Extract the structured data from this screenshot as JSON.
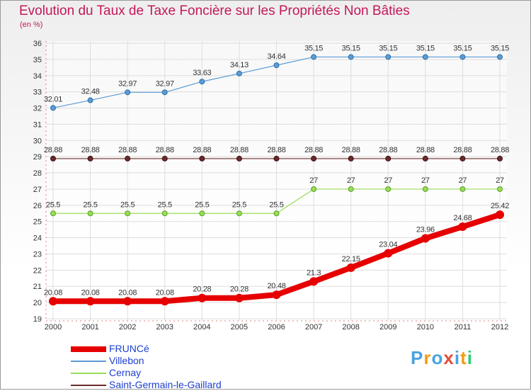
{
  "chart_data": {
    "type": "line",
    "title": "Evolution du Taux de Taxe Foncière sur les Propriétés Non Bâties",
    "subtitle": "(en %)",
    "categories": [
      "2000",
      "2001",
      "2002",
      "2003",
      "2004",
      "2005",
      "2006",
      "2007",
      "2008",
      "2009",
      "2010",
      "2011",
      "2012"
    ],
    "ylim": [
      19,
      36
    ],
    "yticks": [
      "19",
      "20",
      "21",
      "22",
      "23",
      "24",
      "25",
      "26",
      "27",
      "28",
      "29",
      "30",
      "31",
      "32",
      "33",
      "34",
      "35",
      "36"
    ],
    "grid": true,
    "legend_position": "bottom-left",
    "series": [
      {
        "name": "FRUNCé",
        "color": "#e60000",
        "values": [
          20.08,
          20.08,
          20.08,
          20.08,
          20.28,
          20.28,
          20.48,
          21.3,
          22.15,
          23.04,
          23.96,
          24.68,
          25.42
        ],
        "labels": [
          "20.08",
          "20.08",
          "20.08",
          "20.08",
          "20.28",
          "20.28",
          "20.48",
          "21.3",
          "22.15",
          "23.04",
          "23.96",
          "24.68",
          "25.42"
        ]
      },
      {
        "name": "Villebon",
        "color": "#5b9bd5",
        "values": [
          32.01,
          32.48,
          32.97,
          32.97,
          33.63,
          34.13,
          34.64,
          35.15,
          35.15,
          35.15,
          35.15,
          35.15,
          35.15
        ],
        "labels": [
          "32.01",
          "32.48",
          "32.97",
          "32.97",
          "33.63",
          "34.13",
          "34.64",
          "35.15",
          "35.15",
          "35.15",
          "35.15",
          "35.15",
          "35.15"
        ]
      },
      {
        "name": "Cernay",
        "color": "#99dd55",
        "values": [
          25.5,
          25.5,
          25.5,
          25.5,
          25.5,
          25.5,
          25.5,
          27,
          27,
          27,
          27,
          27,
          27
        ],
        "labels": [
          "25.5",
          "25.5",
          "25.5",
          "25.5",
          "25.5",
          "25.5",
          "25.5",
          "27",
          "27",
          "27",
          "27",
          "27",
          "27"
        ]
      },
      {
        "name": "Saint-Germain-le-Gaillard",
        "color": "#6b2b2b",
        "values": [
          28.88,
          28.88,
          28.88,
          28.88,
          28.88,
          28.88,
          28.88,
          28.88,
          28.88,
          28.88,
          28.88,
          28.88,
          28.88
        ],
        "labels": [
          "28.88",
          "28.88",
          "28.88",
          "28.88",
          "28.88",
          "28.88",
          "28.88",
          "28.88",
          "28.88",
          "28.88",
          "28.88",
          "28.88",
          "28.88"
        ]
      }
    ]
  },
  "logo": {
    "text": "Proxiti",
    "letters": [
      "P",
      "r",
      "o",
      "x",
      "i",
      "t",
      "i"
    ],
    "colors": [
      "#4aa3df",
      "#f39c12",
      "#4aa3df",
      "#e74c3c",
      "#4aa3df",
      "#f39c12",
      "#2ecc71"
    ]
  }
}
